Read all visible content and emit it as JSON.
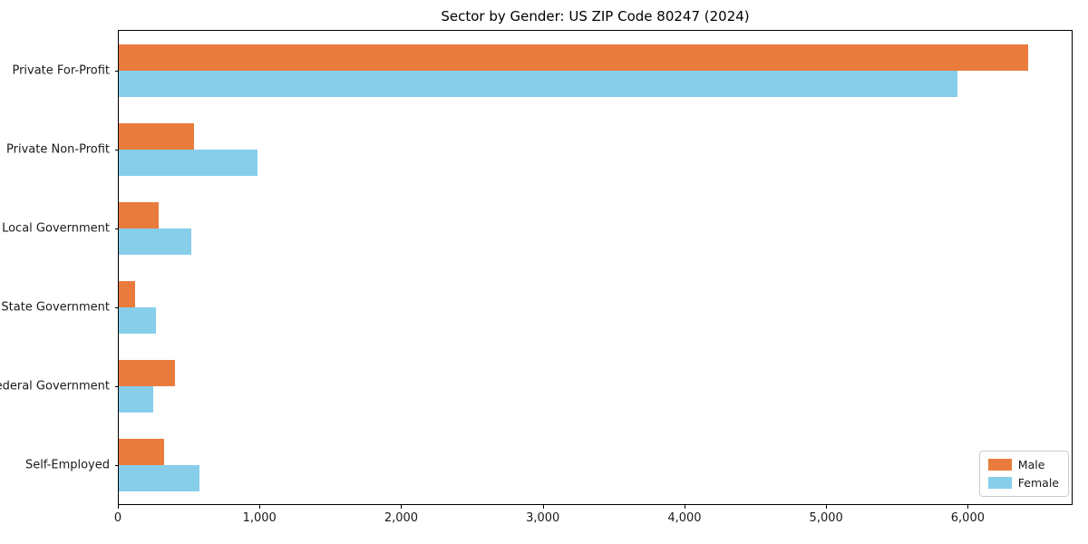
{
  "figure": {
    "title": "Sector by Gender: US ZIP Code 80247 (2024)"
  },
  "chart_data": {
    "type": "bar",
    "orientation": "horizontal",
    "title": "Sector by Gender: US ZIP Code 80247 (2024)",
    "categories": [
      "Private For-Profit",
      "Private Non-Profit",
      "Local Government",
      "State Government",
      "Federal Government",
      "Self-Employed"
    ],
    "series": [
      {
        "name": "Male",
        "color": "#E97C3D",
        "values": [
          6430,
          530,
          280,
          115,
          395,
          320
        ]
      },
      {
        "name": "Female",
        "color": "#87CEEB",
        "values": [
          5930,
          980,
          515,
          260,
          245,
          570
        ]
      }
    ],
    "xlabel": "",
    "ylabel": "",
    "xlim": [
      0,
      6740
    ],
    "x_ticks": [
      0,
      1000,
      2000,
      3000,
      4000,
      5000,
      6000
    ],
    "x_tick_labels": [
      "0",
      "1,000",
      "2,000",
      "3,000",
      "4,000",
      "5,000",
      "6,000"
    ],
    "grid": false,
    "legend_position": "lower right",
    "legend_entries": [
      "Male",
      "Female"
    ],
    "colors": {
      "male": "#E97C3D",
      "female": "#87CEEB",
      "spine": "#000000",
      "background": "#ffffff"
    }
  }
}
